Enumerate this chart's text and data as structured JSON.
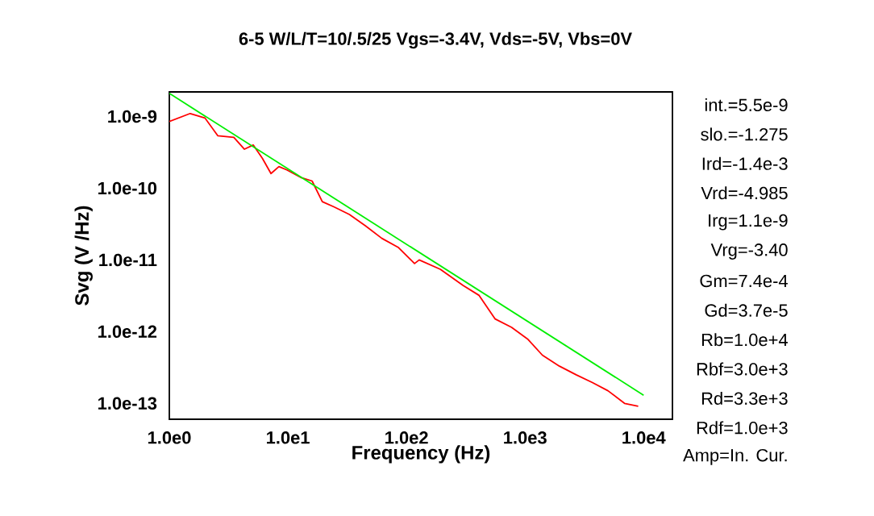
{
  "chart_data": {
    "type": "line",
    "title": "6-5 W/L/T=10/.5/25 Vgs=-3.4V, Vds=-5V, Vbs=0V",
    "xlabel": "Frequency (Hz)",
    "ylabel": "Svg (V  /Hz)",
    "log": "xy",
    "grid": false,
    "marker": "none",
    "line_style": "solid",
    "xlim": [
      1,
      17500
    ],
    "ylim": [
      6e-14,
      2.2e-09
    ],
    "xticks": [
      {
        "value": 1,
        "label": "1.0e0"
      },
      {
        "value": 10,
        "label": "1.0e1"
      },
      {
        "value": 100,
        "label": "1.0e2"
      },
      {
        "value": 1000,
        "label": "1.0e3"
      },
      {
        "value": 10000,
        "label": "1.0e4"
      }
    ],
    "yticks": [
      {
        "value": 1e-13,
        "label": "1.0e-13"
      },
      {
        "value": 1e-12,
        "label": "1.0e-12"
      },
      {
        "value": 1e-11,
        "label": "1.0e-11"
      },
      {
        "value": 1e-10,
        "label": "1.0e-10"
      },
      {
        "value": 1e-09,
        "label": "1.0e-9"
      }
    ],
    "series": [
      {
        "color": "#ff0000",
        "x": [
          1,
          1.5,
          2.0,
          2.56,
          3.5,
          4.3,
          5.1,
          6.1,
          7.2,
          8.4,
          9.8,
          13,
          16,
          19.5,
          24.4,
          33,
          45,
          62,
          85,
          117,
          128,
          193,
          300,
          410,
          560,
          770,
          1050,
          1400,
          1950,
          2700,
          3700,
          5000,
          6900,
          9000
        ],
        "values": [
          8.5e-10,
          1.1e-09,
          9.5e-10,
          5.4e-10,
          5.1e-10,
          3.5e-10,
          4e-10,
          2.6e-10,
          1.6e-10,
          2e-10,
          1.8e-10,
          1.4e-10,
          1.26e-10,
          6.5e-11,
          5.5e-11,
          4.3e-11,
          3e-11,
          2e-11,
          1.5e-11,
          8.9e-12,
          1e-11,
          7.4e-12,
          4.4e-12,
          3.2e-12,
          1.5e-12,
          1.15e-12,
          7.9e-13,
          4.7e-13,
          3.3e-13,
          2.5e-13,
          1.95e-13,
          1.5e-13,
          1e-13,
          9.1e-14
        ]
      },
      {
        "color": "#00ee00",
        "x": [
          1,
          10000
        ],
        "values": [
          2.1e-09,
          1.3e-13
        ]
      }
    ],
    "annotations": [
      "int.=5.5e-9",
      "slo.=-1.275",
      "Ird=-1.4e-3",
      "Vrd=-4.985",
      "Irg=1.1e-9",
      "Vrg=-3.40",
      "Gm=7.4e-4",
      "Gd=3.7e-5",
      "Rb=1.0e+4",
      "Rbf=3.0e+3",
      "Rd=3.3e+3",
      "Rdf=1.0e+3",
      "Amp=In. Cur."
    ]
  }
}
